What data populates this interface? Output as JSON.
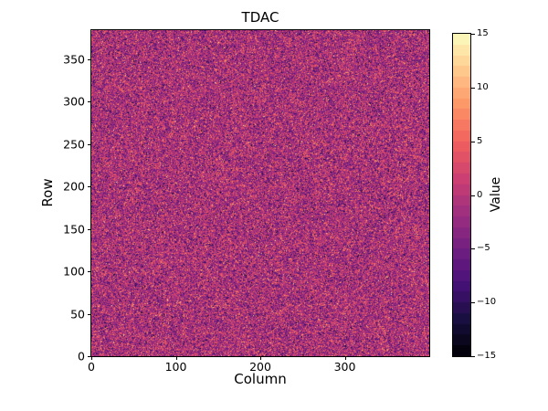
{
  "chart_data": {
    "type": "heatmap",
    "title": "TDAC",
    "xlabel": "Column",
    "ylabel": "Row",
    "colorbar_label": "Value",
    "xlim": [
      0,
      400
    ],
    "ylim": [
      0,
      384
    ],
    "zlim": [
      -15,
      15
    ],
    "grid": false,
    "legend": "none",
    "colorbar_position": "right",
    "x_ticks": [
      {
        "v": 0,
        "label": "0"
      },
      {
        "v": 100,
        "label": "100"
      },
      {
        "v": 200,
        "label": "200"
      },
      {
        "v": 300,
        "label": "300"
      }
    ],
    "y_ticks": [
      {
        "v": 0,
        "label": "0"
      },
      {
        "v": 50,
        "label": "50"
      },
      {
        "v": 100,
        "label": "100"
      },
      {
        "v": 150,
        "label": "150"
      },
      {
        "v": 200,
        "label": "200"
      },
      {
        "v": 250,
        "label": "250"
      },
      {
        "v": 300,
        "label": "300"
      },
      {
        "v": 350,
        "label": "350"
      }
    ],
    "colorbar_ticks": [
      {
        "v": 15,
        "label": "15"
      },
      {
        "v": 10,
        "label": "10"
      },
      {
        "v": 5,
        "label": "5"
      },
      {
        "v": 0,
        "label": "0"
      },
      {
        "v": -5,
        "label": "−5"
      },
      {
        "v": -10,
        "label": "−10"
      },
      {
        "v": -15,
        "label": "−15"
      }
    ],
    "colormap": "magma",
    "colormap_stops": [
      "#000004",
      "#180f3e",
      "#451077",
      "#721f81",
      "#9f2f7f",
      "#cd4071",
      "#f1605d",
      "#fd9567",
      "#feca8d",
      "#fcfdbf"
    ],
    "colorbar_levels": 30,
    "data_distribution": {
      "kind": "gaussian-noise",
      "rows": 384,
      "cols": 400,
      "mean": -1,
      "std": 4.2,
      "clip": [
        -15,
        15
      ],
      "seed": 7
    }
  },
  "colors": {
    "background": "#ffffff",
    "axis": "#000000",
    "text": "#000000"
  }
}
